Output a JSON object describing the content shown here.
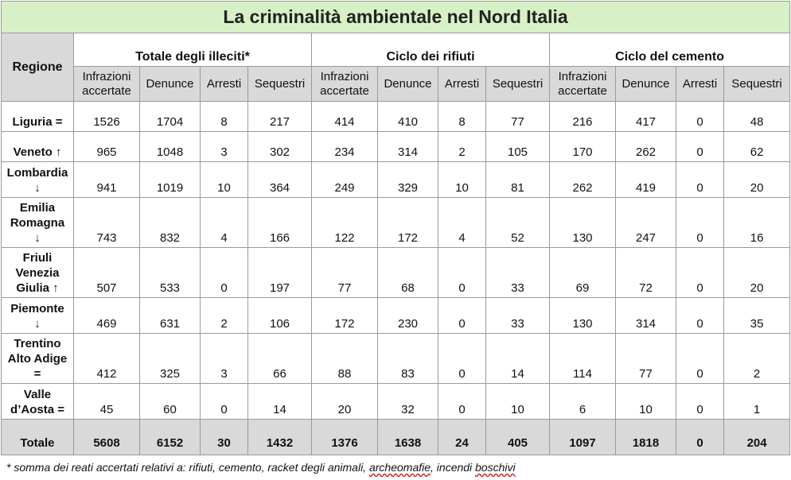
{
  "title": "La criminalità ambientale nel Nord Italia",
  "region_header": "Regione",
  "groups": [
    "Totale degli illeciti*",
    "Ciclo dei rifiuti",
    "Ciclo del cemento"
  ],
  "sub_headers": [
    [
      "Infrazioni",
      "accertate"
    ],
    [
      "Denunce"
    ],
    [
      "Arresti"
    ],
    [
      "Sequestri"
    ],
    [
      "Infrazioni",
      "accertate"
    ],
    [
      "Denunce"
    ],
    [
      "Arresti"
    ],
    [
      "Sequestri"
    ],
    [
      "Infrazioni",
      "accertate"
    ],
    [
      "Denunce"
    ],
    [
      "Arresti"
    ],
    [
      "Sequestri"
    ]
  ],
  "rows": [
    {
      "region": [
        "Liguria ="
      ],
      "values": [
        "1526",
        "1704",
        "8",
        "217",
        "414",
        "410",
        "8",
        "77",
        "216",
        "417",
        "0",
        "48"
      ]
    },
    {
      "region": [
        "Veneto ↑"
      ],
      "values": [
        "965",
        "1048",
        "3",
        "302",
        "234",
        "314",
        "2",
        "105",
        "170",
        "262",
        "0",
        "62"
      ]
    },
    {
      "region": [
        "Lombardia",
        "↓"
      ],
      "values": [
        "941",
        "1019",
        "10",
        "364",
        "249",
        "329",
        "10",
        "81",
        "262",
        "419",
        "0",
        "20"
      ]
    },
    {
      "region": [
        "Emilia",
        "Romagna",
        "↓"
      ],
      "values": [
        "743",
        "832",
        "4",
        "166",
        "122",
        "172",
        "4",
        "52",
        "130",
        "247",
        "0",
        "16"
      ]
    },
    {
      "region": [
        "Friuli",
        "Venezia",
        "Giulia ↑"
      ],
      "values": [
        "507",
        "533",
        "0",
        "197",
        "77",
        "68",
        "0",
        "33",
        "69",
        "72",
        "0",
        "20"
      ]
    },
    {
      "region": [
        "Piemonte",
        "↓"
      ],
      "values": [
        "469",
        "631",
        "2",
        "106",
        "172",
        "230",
        "0",
        "33",
        "130",
        "314",
        "0",
        "35"
      ]
    },
    {
      "region": [
        "Trentino",
        "Alto Adige",
        "="
      ],
      "values": [
        "412",
        "325",
        "3",
        "66",
        "88",
        "83",
        "0",
        "14",
        "114",
        "77",
        "0",
        "2"
      ]
    },
    {
      "region": [
        "Valle",
        "d’Aosta ="
      ],
      "values": [
        "45",
        "60",
        "0",
        "14",
        "20",
        "32",
        "0",
        "10",
        "6",
        "10",
        "0",
        "1"
      ]
    }
  ],
  "total": {
    "label": "Totale",
    "values": [
      "5608",
      "6152",
      "30",
      "1432",
      "1376",
      "1638",
      "24",
      "405",
      "1097",
      "1818",
      "0",
      "204"
    ]
  },
  "footnote": {
    "part1": "* somma dei reati accertati relativi a: rifiuti, cemento, racket degli animali, ",
    "word1": "archeomafie",
    "part2": ", incendi ",
    "word2": "boschivi"
  },
  "colors": {
    "title_bg": "#d8f0c6",
    "header_bg": "#d9d9d9",
    "border": "#9a9a9a"
  }
}
